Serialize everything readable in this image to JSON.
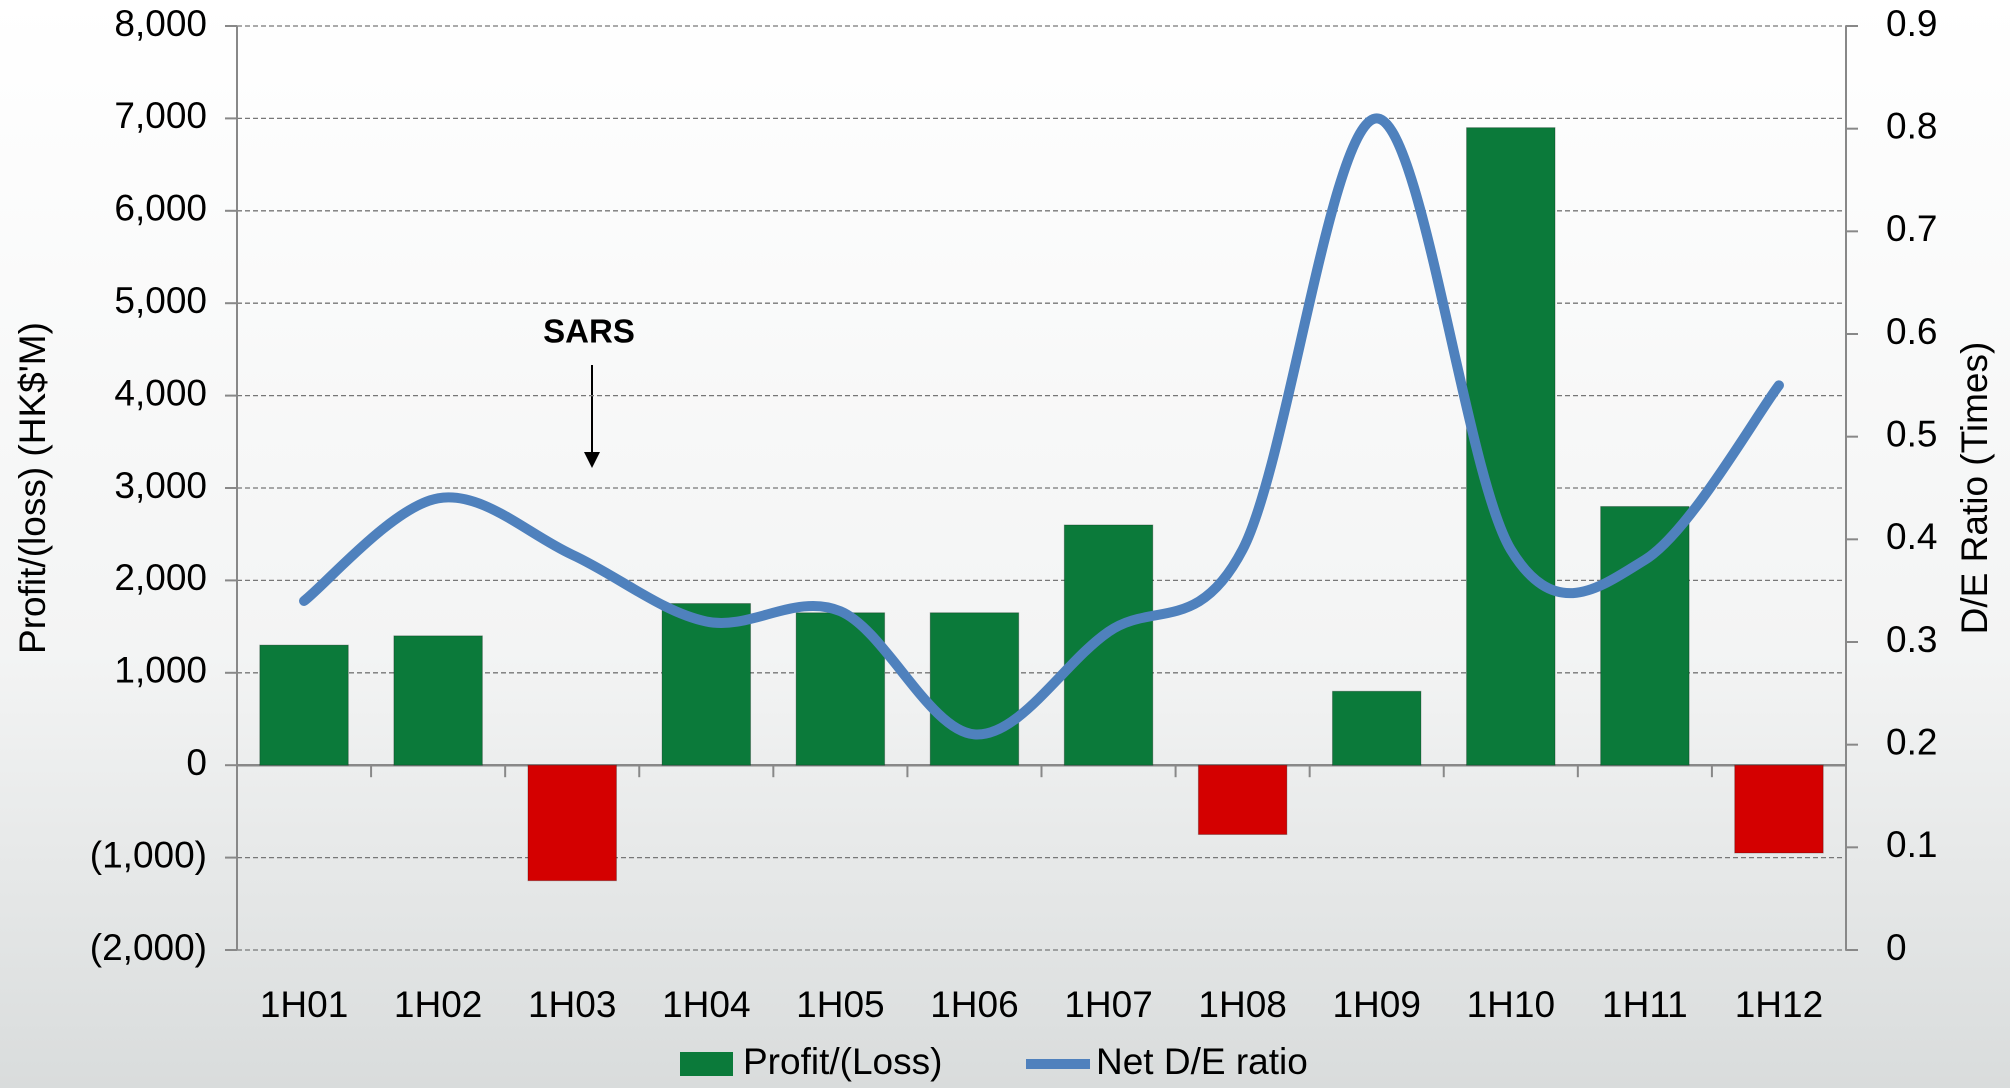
{
  "chart_data": {
    "type": "bar-line",
    "y_label": "Profit/(loss) (HK$'M)",
    "y2_label": "D/E Ratio (Times)",
    "annotation": "SARS",
    "categories": [
      "1H01",
      "1H02",
      "1H03",
      "1H04",
      "1H05",
      "1H06",
      "1H07",
      "1H08",
      "1H09",
      "1H10",
      "1H11",
      "1H12"
    ],
    "series": [
      {
        "name": "Profit/(Loss)",
        "type": "bar",
        "color": "#0b7a3a",
        "negative_color": "#d40000",
        "values": [
          1300,
          1400,
          -1250,
          1750,
          1650,
          1650,
          2600,
          -750,
          800,
          6900,
          2800,
          -950
        ]
      },
      {
        "name": "Net D/E ratio",
        "type": "line",
        "axis": "y2",
        "color": "#4f81bd",
        "values": [
          0.34,
          0.44,
          0.385,
          0.32,
          0.33,
          0.21,
          0.31,
          0.39,
          0.81,
          0.39,
          0.38,
          0.55
        ]
      }
    ],
    "ylim": [
      -2000,
      8000
    ],
    "yticks": [
      {
        "value": -2000,
        "label": "(2,000)"
      },
      {
        "value": -1000,
        "label": "(1,000)"
      },
      0,
      {
        "value": 1000,
        "label": "1,000"
      },
      {
        "value": 2000,
        "label": "2,000"
      },
      {
        "value": 3000,
        "label": "3,000"
      },
      {
        "value": 4000,
        "label": "4,000"
      },
      {
        "value": 5000,
        "label": "5,000"
      },
      {
        "value": 6000,
        "label": "6,000"
      },
      {
        "value": 7000,
        "label": "7,000"
      },
      {
        "value": 8000,
        "label": "8,000"
      }
    ],
    "y2lim": [
      0,
      0.9
    ],
    "y2ticks": [
      0,
      0.1,
      0.2,
      0.3,
      0.4,
      0.5,
      0.6,
      0.7,
      0.8,
      0.9
    ],
    "grid": true,
    "legend": "bottom"
  }
}
